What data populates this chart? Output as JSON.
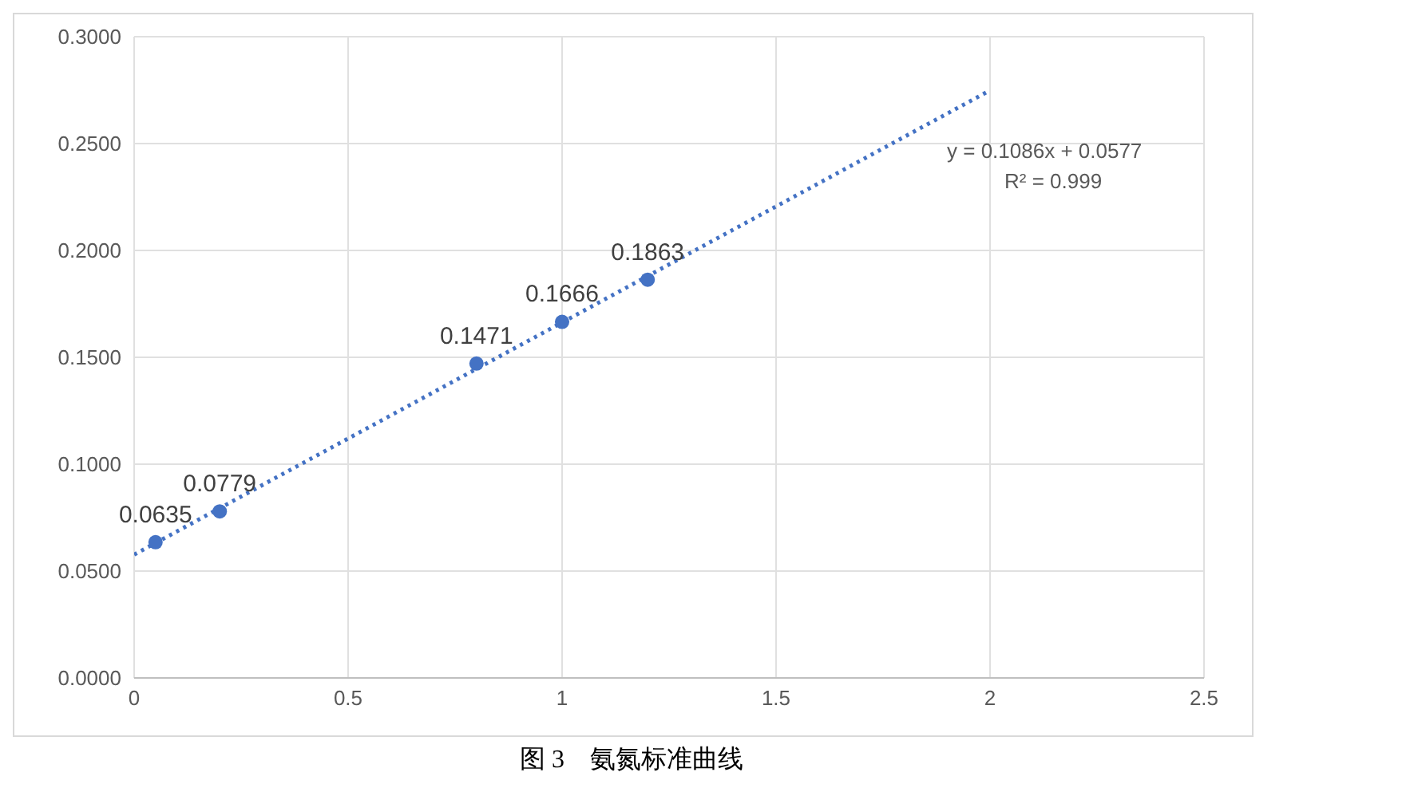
{
  "chart_data": {
    "type": "scatter",
    "x": [
      0.05,
      0.2,
      0.8,
      1.0,
      1.2
    ],
    "series": [
      {
        "color": "#4472c4",
        "values": [
          0.0635,
          0.0779,
          0.1471,
          0.1666,
          0.1863
        ],
        "value_labels": [
          "0.0635",
          "0.0779",
          "0.1471",
          "0.1666",
          "0.1863"
        ],
        "marker": "circle"
      },
      {
        "type": "line",
        "color": "#4472c4",
        "x": [
          0,
          2
        ],
        "values": [
          0.0577,
          0.2749
        ],
        "line_style": "dotted",
        "marker": "none"
      }
    ],
    "xlim": [
      0,
      2.5
    ],
    "xticks": [
      0,
      0.5,
      1,
      1.5,
      2,
      2.5
    ],
    "ylim": [
      0,
      0.3
    ],
    "yticks": [
      {
        "value": 0,
        "label": "0.0000"
      },
      {
        "value": 0.05,
        "label": "0.0500"
      },
      {
        "value": 0.1,
        "label": "0.1000"
      },
      {
        "value": 0.15,
        "label": "0.1500"
      },
      {
        "value": 0.2,
        "label": "0.2000"
      },
      {
        "value": 0.25,
        "label": "0.2500"
      },
      {
        "value": 0.3,
        "label": "0.3000"
      }
    ],
    "grid": true,
    "annotations": [
      "y = 0.1086x + 0.0577",
      "R² = 0.999",
      "图 3　氨氮标准曲线"
    ]
  }
}
